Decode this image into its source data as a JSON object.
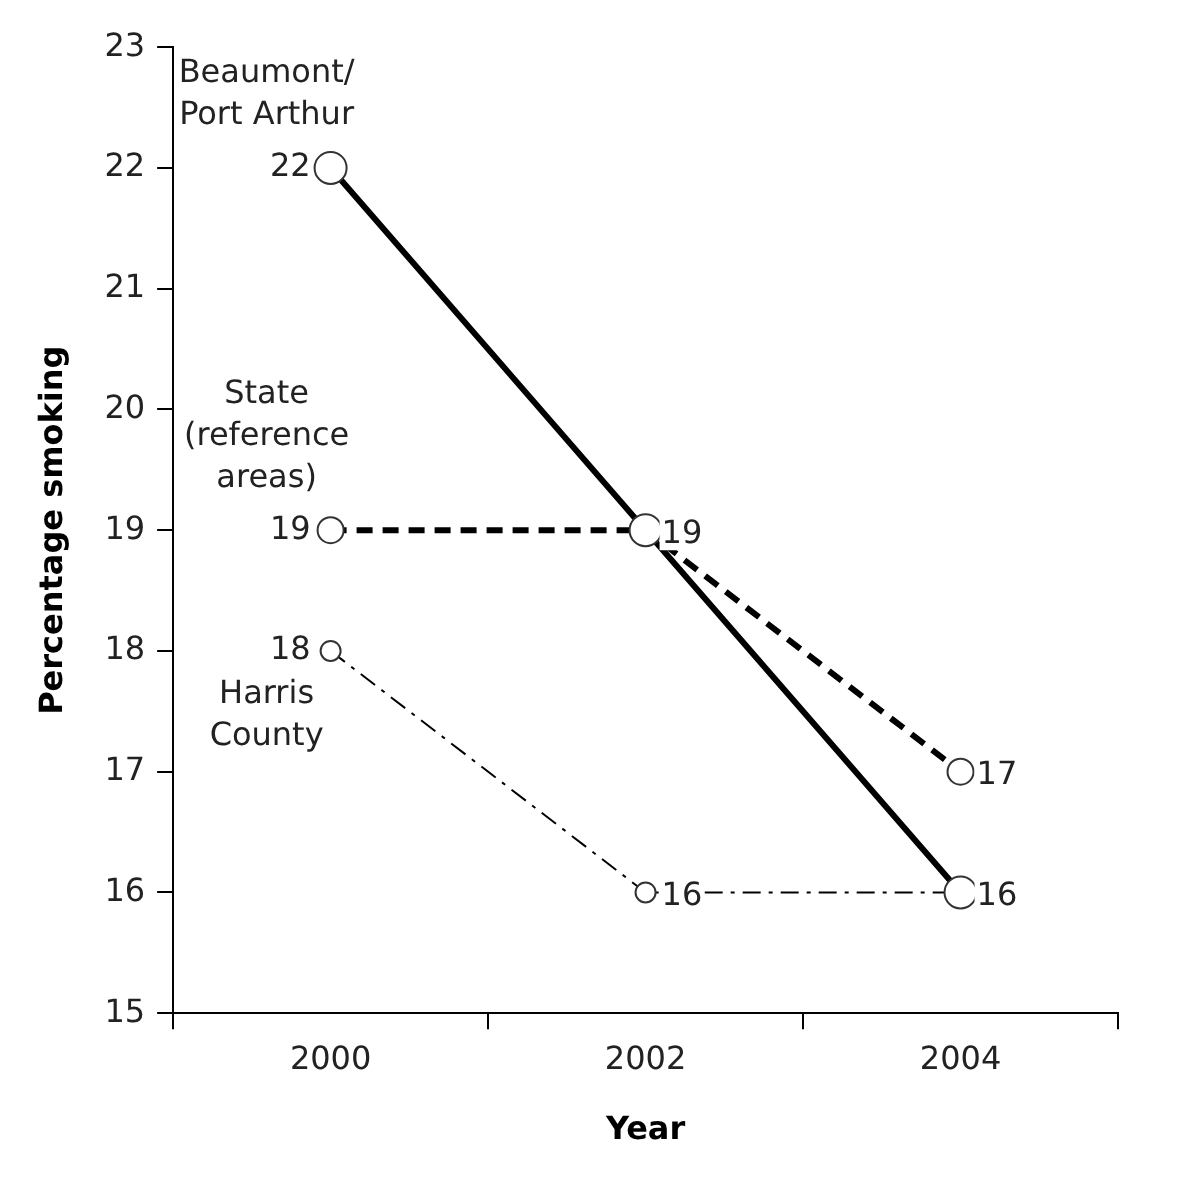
{
  "chart_data": {
    "type": "line",
    "xlabel": "Year",
    "ylabel": "Percentage smoking",
    "categories": [
      "2000",
      "2002",
      "2004"
    ],
    "series": [
      {
        "name": "Beaumont/Port Arthur",
        "color": "#000000",
        "values": [
          22,
          19,
          16
        ],
        "line_style": "solid",
        "value_labels": [
          "22",
          null,
          "16"
        ]
      },
      {
        "name": "State (reference areas)",
        "color": "#000000",
        "values": [
          19,
          19,
          17
        ],
        "line_style": "dashed",
        "value_labels": [
          "19",
          "19",
          "17"
        ]
      },
      {
        "name": "Harris County",
        "color": "#000000",
        "values": [
          18,
          16,
          16
        ],
        "line_style": "dotted",
        "value_labels": [
          "18",
          "16",
          null
        ]
      }
    ],
    "ylim": [
      15,
      23
    ],
    "yticks": [
      15,
      16,
      17,
      18,
      19,
      20,
      21,
      22,
      23
    ],
    "grid": false,
    "legend": false,
    "marker": "circle"
  }
}
